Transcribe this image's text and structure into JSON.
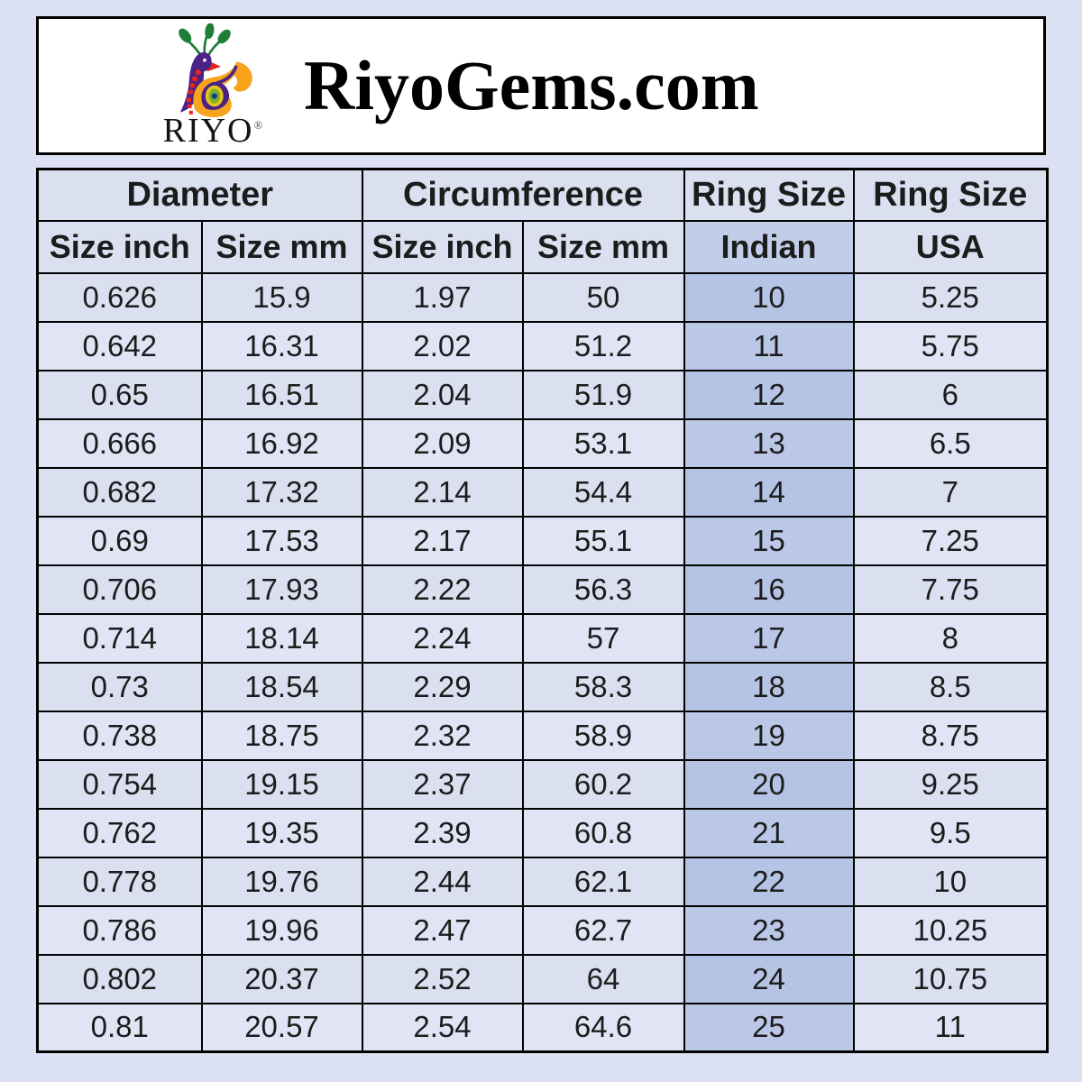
{
  "page": {
    "background_color": "#dbe0f2"
  },
  "header": {
    "title": "RiyoGems.com",
    "logo": {
      "brand": "RIYO",
      "registered_mark": "®",
      "icon": "peacock-logo-icon"
    }
  },
  "table": {
    "group_headers": [
      "Diameter",
      "Circumference",
      "Ring Size",
      "Ring Size"
    ],
    "column_headers": [
      "Size inch",
      "Size mm",
      "Size inch",
      "Size mm",
      "Indian",
      "USA"
    ],
    "highlighted_column": "Indian",
    "rows": [
      [
        "0.626",
        "15.9",
        "1.97",
        "50",
        "10",
        "5.25"
      ],
      [
        "0.642",
        "16.31",
        "2.02",
        "51.2",
        "11",
        "5.75"
      ],
      [
        "0.65",
        "16.51",
        "2.04",
        "51.9",
        "12",
        "6"
      ],
      [
        "0.666",
        "16.92",
        "2.09",
        "53.1",
        "13",
        "6.5"
      ],
      [
        "0.682",
        "17.32",
        "2.14",
        "54.4",
        "14",
        "7"
      ],
      [
        "0.69",
        "17.53",
        "2.17",
        "55.1",
        "15",
        "7.25"
      ],
      [
        "0.706",
        "17.93",
        "2.22",
        "56.3",
        "16",
        "7.75"
      ],
      [
        "0.714",
        "18.14",
        "2.24",
        "57",
        "17",
        "8"
      ],
      [
        "0.73",
        "18.54",
        "2.29",
        "58.3",
        "18",
        "8.5"
      ],
      [
        "0.738",
        "18.75",
        "2.32",
        "58.9",
        "19",
        "8.75"
      ],
      [
        "0.754",
        "19.15",
        "2.37",
        "60.2",
        "20",
        "9.25"
      ],
      [
        "0.762",
        "19.35",
        "2.39",
        "60.8",
        "21",
        "9.5"
      ],
      [
        "0.778",
        "19.76",
        "2.44",
        "62.1",
        "22",
        "10"
      ],
      [
        "0.786",
        "19.96",
        "2.47",
        "62.7",
        "23",
        "10.25"
      ],
      [
        "0.802",
        "20.37",
        "2.52",
        "64",
        "24",
        "10.75"
      ],
      [
        "0.81",
        "20.57",
        "2.54",
        "64.6",
        "25",
        "11"
      ]
    ],
    "colors": {
      "cell_background": "#dbe0f1",
      "highlight_background": "#b5c3e4",
      "highlight_header_background": "#c2cde9",
      "border": "#000000",
      "text": "#1c1c1c"
    }
  }
}
